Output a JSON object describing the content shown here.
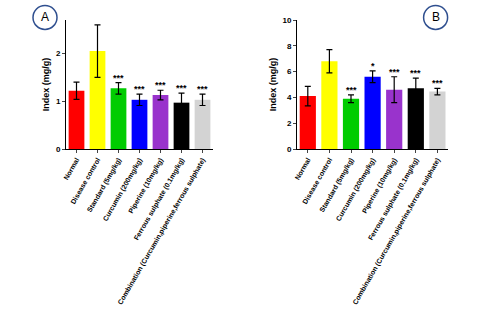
{
  "chart_data": [
    {
      "type": "bar",
      "title": "A",
      "y_label": "Index (mg/g)",
      "categories": [
        "Normal",
        "Disease control",
        "Standard (5mg/kg)",
        "Curcumin (200mg/kg)",
        "Piperine (10mg/kg)",
        "Ferrous sulphate (0.1mg/kg)",
        "Combination (Curcumin,piperine,ferrous sulphate)"
      ],
      "values": [
        1.22,
        2.05,
        1.27,
        1.03,
        1.13,
        0.97,
        1.03
      ],
      "errors": [
        0.18,
        0.55,
        0.12,
        0.12,
        0.1,
        0.2,
        0.12
      ],
      "significance": [
        null,
        null,
        "***",
        "***",
        "***",
        "***",
        "***"
      ],
      "colors": [
        "#ff0000",
        "#ffff00",
        "#00cc00",
        "#0000ff",
        "#9933cc",
        "#000000",
        "#d3d3d3"
      ],
      "ylim": [
        0,
        2.7
      ],
      "yticks": [
        0,
        1,
        2
      ],
      "grid": false
    },
    {
      "type": "bar",
      "title": "B",
      "y_label": "Index (mg/g)",
      "categories": [
        "Normal",
        "Disease control",
        "Standard (5mg/kg)",
        "Curcumin (200mg/kg)",
        "Piperine (10mg/kg)",
        "Ferrous sulphate (0.1mg/kg)",
        "Combination (Curcumin,piperine,ferrous sulphate)"
      ],
      "values": [
        4.1,
        6.8,
        3.9,
        5.6,
        4.6,
        4.7,
        4.45
      ],
      "errors": [
        0.75,
        0.9,
        0.3,
        0.45,
        1.0,
        0.8,
        0.25
      ],
      "significance": [
        null,
        null,
        "***",
        "*",
        "***",
        "***",
        "***"
      ],
      "colors": [
        "#ff0000",
        "#ffff00",
        "#00cc00",
        "#0000ff",
        "#9933cc",
        "#000000",
        "#d3d3d3"
      ],
      "ylim": [
        0,
        10
      ],
      "yticks": [
        0,
        2,
        4,
        6,
        8,
        10
      ],
      "grid": false
    }
  ]
}
